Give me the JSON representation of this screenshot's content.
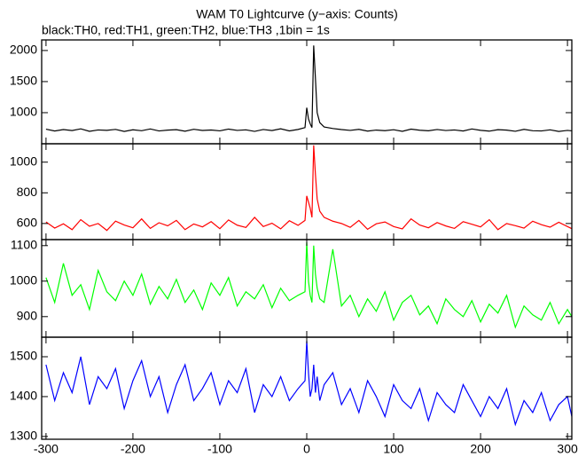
{
  "title": "WAM T0 Lightcurve (y−axis: Counts)",
  "subtitle": "black:TH0, red:TH1, green:TH2, blue:TH3 ,1bin = 1s",
  "chart_data": [
    {
      "type": "line",
      "color": "#000000",
      "xlim": [
        -305,
        305
      ],
      "ylim": [
        500,
        2170
      ],
      "yticks": [
        1000,
        1500,
        2000
      ],
      "x": [
        -300,
        -290,
        -280,
        -270,
        -260,
        -250,
        -240,
        -230,
        -220,
        -210,
        -200,
        -190,
        -180,
        -170,
        -160,
        -150,
        -140,
        -130,
        -120,
        -110,
        -100,
        -90,
        -80,
        -70,
        -60,
        -50,
        -40,
        -30,
        -20,
        -10,
        -2,
        0,
        2,
        4,
        6,
        8,
        10,
        12,
        15,
        20,
        30,
        40,
        50,
        60,
        70,
        80,
        90,
        100,
        110,
        120,
        130,
        140,
        150,
        160,
        170,
        180,
        190,
        200,
        210,
        220,
        230,
        240,
        250,
        260,
        270,
        280,
        290,
        300,
        305
      ],
      "values": [
        735,
        705,
        728,
        712,
        740,
        700,
        722,
        716,
        731,
        698,
        725,
        710,
        738,
        706,
        719,
        727,
        702,
        733,
        714,
        721,
        708,
        736,
        715,
        724,
        699,
        729,
        712,
        741,
        707,
        730,
        760,
        1080,
        900,
        820,
        760,
        2080,
        1550,
        1000,
        840,
        770,
        745,
        728,
        715,
        732,
        704,
        720,
        711,
        726,
        700,
        735,
        718,
        709,
        729,
        713,
        722,
        705,
        738,
        716,
        703,
        727,
        719,
        701,
        732,
        710,
        706,
        724,
        698,
        715,
        708
      ]
    },
    {
      "type": "line",
      "color": "#ff0000",
      "xlim": [
        -305,
        305
      ],
      "ylim": [
        495,
        1120
      ],
      "yticks": [
        600,
        800,
        1000
      ],
      "x": [
        -300,
        -290,
        -280,
        -270,
        -260,
        -250,
        -240,
        -230,
        -220,
        -210,
        -200,
        -190,
        -180,
        -170,
        -160,
        -150,
        -140,
        -130,
        -120,
        -110,
        -100,
        -90,
        -80,
        -70,
        -60,
        -50,
        -40,
        -30,
        -20,
        -10,
        -2,
        0,
        2,
        4,
        6,
        8,
        10,
        12,
        15,
        20,
        30,
        40,
        50,
        60,
        70,
        80,
        90,
        100,
        110,
        120,
        130,
        140,
        150,
        160,
        170,
        180,
        190,
        200,
        210,
        220,
        230,
        240,
        250,
        260,
        270,
        280,
        290,
        300,
        305
      ],
      "values": [
        610,
        570,
        598,
        560,
        625,
        582,
        600,
        555,
        615,
        590,
        572,
        630,
        568,
        605,
        585,
        620,
        560,
        597,
        578,
        612,
        566,
        623,
        589,
        574,
        640,
        580,
        602,
        565,
        618,
        588,
        620,
        780,
        740,
        700,
        640,
        1110,
        920,
        760,
        680,
        640,
        615,
        600,
        575,
        620,
        562,
        598,
        610,
        580,
        565,
        630,
        590,
        572,
        606,
        584,
        568,
        612,
        595,
        578,
        625,
        560,
        600,
        586,
        570,
        615,
        592,
        576,
        608,
        580,
        566
      ]
    },
    {
      "type": "line",
      "color": "#00ff00",
      "xlim": [
        -305,
        305
      ],
      "ylim": [
        842,
        1117
      ],
      "yticks": [
        900,
        1000,
        1100
      ],
      "x": [
        -300,
        -290,
        -280,
        -270,
        -260,
        -250,
        -240,
        -230,
        -220,
        -210,
        -200,
        -190,
        -180,
        -170,
        -160,
        -150,
        -140,
        -130,
        -120,
        -110,
        -100,
        -90,
        -80,
        -70,
        -60,
        -50,
        -40,
        -30,
        -20,
        -10,
        -2,
        0,
        2,
        4,
        6,
        8,
        10,
        12,
        15,
        20,
        30,
        40,
        50,
        60,
        70,
        80,
        90,
        100,
        110,
        120,
        130,
        140,
        150,
        160,
        170,
        180,
        190,
        200,
        210,
        220,
        230,
        240,
        250,
        260,
        270,
        280,
        290,
        300,
        305
      ],
      "values": [
        1010,
        940,
        1050,
        960,
        990,
        920,
        1030,
        970,
        945,
        1000,
        960,
        1020,
        935,
        985,
        950,
        1005,
        940,
        975,
        920,
        995,
        960,
        1010,
        930,
        970,
        950,
        990,
        925,
        980,
        945,
        960,
        970,
        1110,
        1000,
        960,
        940,
        1100,
        1020,
        980,
        950,
        940,
        1090,
        930,
        960,
        900,
        950,
        915,
        970,
        890,
        940,
        960,
        905,
        930,
        880,
        950,
        920,
        900,
        945,
        885,
        935,
        910,
        960,
        870,
        930,
        905,
        890,
        940,
        880,
        920,
        900
      ]
    },
    {
      "type": "line",
      "color": "#0000ff",
      "xlim": [
        -305,
        305
      ],
      "ylim": [
        1293,
        1549
      ],
      "yticks": [
        1300,
        1400,
        1500
      ],
      "xticks": [
        -300,
        -200,
        -100,
        0,
        100,
        200,
        300
      ],
      "x": [
        -300,
        -290,
        -280,
        -270,
        -260,
        -250,
        -240,
        -230,
        -220,
        -210,
        -200,
        -190,
        -180,
        -170,
        -160,
        -150,
        -140,
        -130,
        -120,
        -110,
        -100,
        -90,
        -80,
        -70,
        -60,
        -50,
        -40,
        -30,
        -20,
        -10,
        -2,
        0,
        2,
        4,
        6,
        8,
        10,
        12,
        15,
        20,
        30,
        40,
        50,
        60,
        70,
        80,
        90,
        100,
        110,
        120,
        130,
        140,
        150,
        160,
        170,
        180,
        190,
        200,
        210,
        220,
        230,
        240,
        250,
        260,
        270,
        280,
        290,
        300,
        305
      ],
      "values": [
        1480,
        1390,
        1460,
        1410,
        1500,
        1380,
        1450,
        1420,
        1470,
        1370,
        1440,
        1490,
        1400,
        1450,
        1360,
        1430,
        1480,
        1390,
        1420,
        1460,
        1380,
        1440,
        1410,
        1470,
        1360,
        1430,
        1400,
        1450,
        1390,
        1420,
        1440,
        1540,
        1460,
        1400,
        1420,
        1480,
        1410,
        1450,
        1390,
        1430,
        1460,
        1380,
        1420,
        1360,
        1440,
        1400,
        1350,
        1430,
        1390,
        1370,
        1420,
        1340,
        1410,
        1380,
        1360,
        1430,
        1390,
        1350,
        1400,
        1370,
        1420,
        1330,
        1390,
        1360,
        1410,
        1340,
        1380,
        1400,
        1350
      ]
    }
  ]
}
